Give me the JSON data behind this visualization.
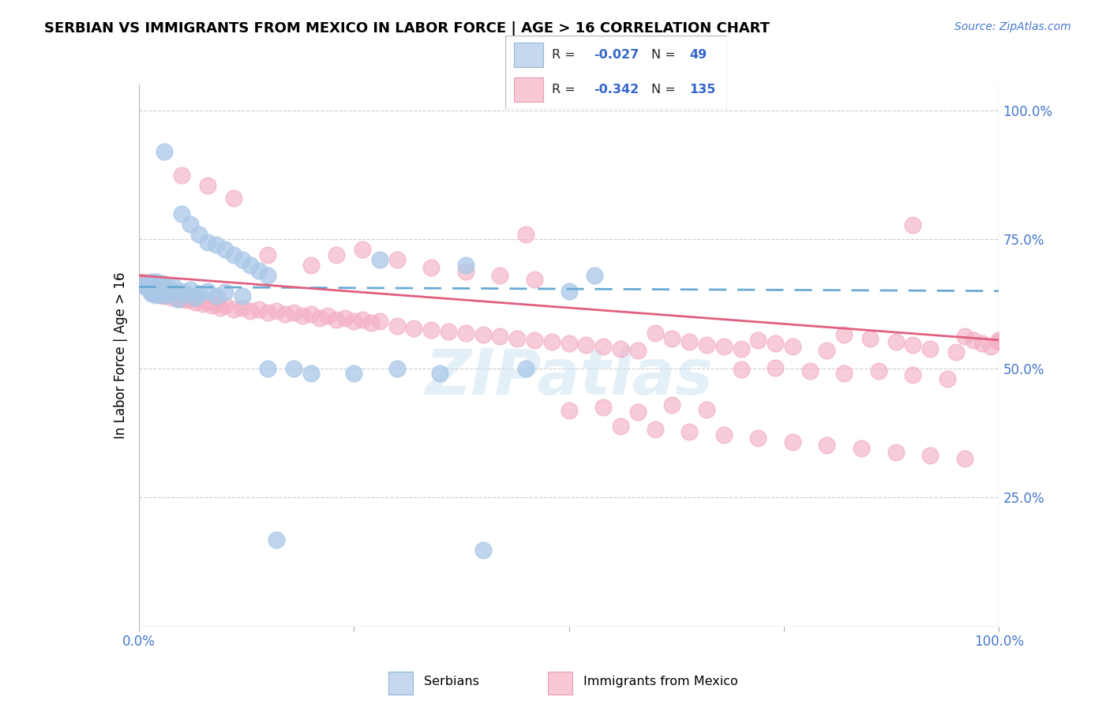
{
  "title": "SERBIAN VS IMMIGRANTS FROM MEXICO IN LABOR FORCE | AGE > 16 CORRELATION CHART",
  "source": "Source: ZipAtlas.com",
  "ylabel": "In Labor Force | Age > 16",
  "legend_r1": "-0.027",
  "legend_n1": "49",
  "legend_r2": "-0.342",
  "legend_n2": "135",
  "watermark": "ZIPatlas",
  "blue_scatter_color": "#aac8e8",
  "blue_edge_color": "#aac8e8",
  "pink_scatter_color": "#f4afc4",
  "pink_edge_color": "#f4afc4",
  "blue_line_color": "#6aaad4",
  "pink_line_color": "#e06080",
  "grid_color": "#cccccc",
  "right_tick_color": "#4477cc",
  "xlim": [
    0.0,
    1.0
  ],
  "ylim": [
    0.0,
    1.05
  ],
  "yticks": [
    0.25,
    0.5,
    0.75,
    1.0
  ],
  "ytick_labels": [
    "25.0%",
    "50.0%",
    "75.0%",
    "100.0%"
  ],
  "trend_blue_start_y": 0.658,
  "trend_blue_end_y": 0.65,
  "trend_pink_start_y": 0.68,
  "trend_pink_end_y": 0.555,
  "blue_x": [
    0.005,
    0.008,
    0.01,
    0.012,
    0.013,
    0.015,
    0.015,
    0.016,
    0.017,
    0.018,
    0.018,
    0.019,
    0.02,
    0.02,
    0.021,
    0.022,
    0.022,
    0.023,
    0.025,
    0.025,
    0.026,
    0.027,
    0.028,
    0.028,
    0.03,
    0.03,
    0.032,
    0.035,
    0.038,
    0.04,
    0.045,
    0.05,
    0.055,
    0.06,
    0.065,
    0.07,
    0.08,
    0.09,
    0.1,
    0.12,
    0.15,
    0.18,
    0.2,
    0.25,
    0.3,
    0.35,
    0.4,
    0.45,
    0.5
  ],
  "blue_y": [
    0.66,
    0.658,
    0.655,
    0.662,
    0.65,
    0.668,
    0.645,
    0.655,
    0.66,
    0.65,
    0.665,
    0.658,
    0.642,
    0.668,
    0.655,
    0.648,
    0.662,
    0.652,
    0.658,
    0.645,
    0.66,
    0.648,
    0.655,
    0.665,
    0.642,
    0.658,
    0.65,
    0.655,
    0.648,
    0.66,
    0.635,
    0.65,
    0.645,
    0.652,
    0.638,
    0.645,
    0.65,
    0.64,
    0.648,
    0.64,
    0.5,
    0.5,
    0.49,
    0.49,
    0.5,
    0.49,
    0.148,
    0.5,
    0.65
  ],
  "blue_y_outliers": [
    0.92,
    0.8,
    0.78,
    0.76,
    0.745,
    0.74,
    0.73,
    0.72,
    0.71,
    0.7,
    0.69,
    0.68,
    0.71,
    0.7,
    0.68,
    0.168
  ],
  "blue_x_outliers": [
    0.03,
    0.05,
    0.06,
    0.07,
    0.08,
    0.09,
    0.1,
    0.11,
    0.12,
    0.13,
    0.14,
    0.15,
    0.28,
    0.38,
    0.53,
    0.16
  ],
  "pink_x": [
    0.005,
    0.007,
    0.008,
    0.009,
    0.01,
    0.012,
    0.013,
    0.014,
    0.015,
    0.015,
    0.016,
    0.017,
    0.018,
    0.019,
    0.02,
    0.021,
    0.022,
    0.023,
    0.025,
    0.026,
    0.027,
    0.028,
    0.029,
    0.03,
    0.032,
    0.035,
    0.038,
    0.04,
    0.042,
    0.045,
    0.048,
    0.05,
    0.055,
    0.06,
    0.065,
    0.07,
    0.075,
    0.08,
    0.085,
    0.09,
    0.095,
    0.1,
    0.11,
    0.12,
    0.13,
    0.14,
    0.15,
    0.16,
    0.17,
    0.18,
    0.19,
    0.2,
    0.21,
    0.22,
    0.23,
    0.24,
    0.25,
    0.26,
    0.27,
    0.28,
    0.3,
    0.32,
    0.34,
    0.36,
    0.38,
    0.4,
    0.42,
    0.44,
    0.46,
    0.48,
    0.5,
    0.52,
    0.54,
    0.56,
    0.58,
    0.6,
    0.62,
    0.64,
    0.66,
    0.68,
    0.7,
    0.72,
    0.74,
    0.76,
    0.8,
    0.82,
    0.85,
    0.88,
    0.9,
    0.92,
    0.95,
    0.96,
    0.97,
    0.98,
    0.99,
    1.0,
    0.15,
    0.2,
    0.23,
    0.26,
    0.3,
    0.34,
    0.38,
    0.42,
    0.46,
    0.5,
    0.54,
    0.58,
    0.62,
    0.66,
    0.7,
    0.74,
    0.78,
    0.82,
    0.86,
    0.9,
    0.94,
    0.56,
    0.6,
    0.64,
    0.68,
    0.72,
    0.76,
    0.8,
    0.84,
    0.88,
    0.92,
    0.96,
    1.0,
    0.05,
    0.08,
    0.11,
    0.45,
    0.9
  ],
  "pink_y": [
    0.668,
    0.662,
    0.665,
    0.66,
    0.658,
    0.662,
    0.655,
    0.66,
    0.65,
    0.665,
    0.658,
    0.648,
    0.66,
    0.655,
    0.645,
    0.658,
    0.65,
    0.655,
    0.645,
    0.65,
    0.642,
    0.648,
    0.655,
    0.64,
    0.645,
    0.648,
    0.638,
    0.645,
    0.64,
    0.638,
    0.635,
    0.638,
    0.632,
    0.635,
    0.628,
    0.632,
    0.625,
    0.628,
    0.622,
    0.625,
    0.618,
    0.622,
    0.615,
    0.618,
    0.612,
    0.615,
    0.608,
    0.612,
    0.605,
    0.608,
    0.602,
    0.605,
    0.598,
    0.602,
    0.595,
    0.598,
    0.592,
    0.595,
    0.588,
    0.592,
    0.582,
    0.578,
    0.575,
    0.572,
    0.568,
    0.565,
    0.562,
    0.558,
    0.555,
    0.552,
    0.548,
    0.545,
    0.542,
    0.538,
    0.535,
    0.568,
    0.558,
    0.552,
    0.545,
    0.542,
    0.538,
    0.555,
    0.548,
    0.542,
    0.535,
    0.565,
    0.558,
    0.552,
    0.545,
    0.538,
    0.532,
    0.562,
    0.555,
    0.548,
    0.542,
    0.555,
    0.72,
    0.7,
    0.72,
    0.73,
    0.71,
    0.695,
    0.688,
    0.68,
    0.672,
    0.418,
    0.425,
    0.415,
    0.43,
    0.42,
    0.498,
    0.502,
    0.495,
    0.49,
    0.495,
    0.488,
    0.48,
    0.388,
    0.382,
    0.378,
    0.372,
    0.365,
    0.358,
    0.352,
    0.345,
    0.338,
    0.332,
    0.325,
    0.552,
    0.875,
    0.855,
    0.83,
    0.76,
    0.778
  ]
}
